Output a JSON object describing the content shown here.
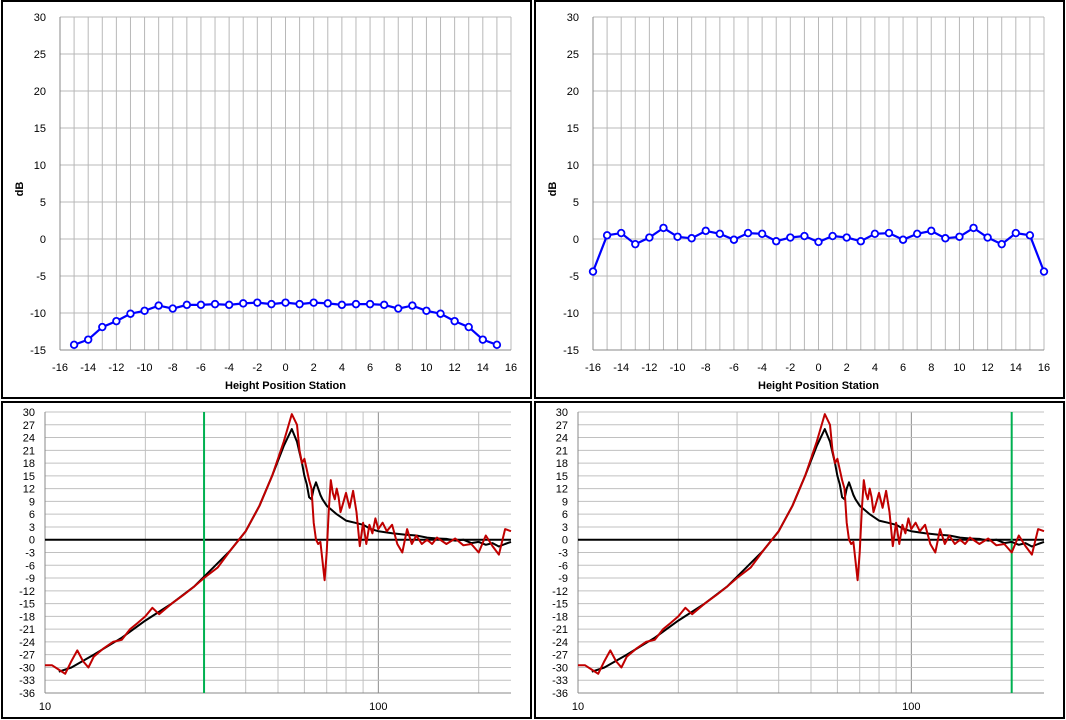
{
  "chart_data": [
    {
      "type": "line",
      "xlabel": "Height Position Station",
      "ylabel": "dB",
      "xlim": [
        -16,
        16
      ],
      "ylim": [
        -15,
        30
      ],
      "xticks": [
        -16,
        -14,
        -12,
        -10,
        -8,
        -6,
        -4,
        -2,
        0,
        2,
        4,
        6,
        8,
        10,
        12,
        14,
        16
      ],
      "yticks": [
        -15,
        -10,
        -5,
        0,
        5,
        10,
        15,
        20,
        25,
        30
      ],
      "grid": true,
      "series": [
        {
          "color": "#0000ff",
          "marker": "circle",
          "x": [
            -15,
            -14,
            -13,
            -12,
            -11,
            -10,
            -9,
            -8,
            -7,
            -6,
            -5,
            -4,
            -3,
            -2,
            -1,
            0,
            1,
            2,
            3,
            4,
            5,
            6,
            7,
            8,
            9,
            10,
            11,
            12,
            13,
            14,
            15
          ],
          "y": [
            -14.3,
            -13.6,
            -11.9,
            -11.1,
            -10.1,
            -9.7,
            -9.0,
            -9.4,
            -8.9,
            -8.9,
            -8.8,
            -8.9,
            -8.7,
            -8.6,
            -8.8,
            -8.6,
            -8.8,
            -8.6,
            -8.7,
            -8.9,
            -8.8,
            -8.8,
            -8.9,
            -9.4,
            -9.0,
            -9.7,
            -10.1,
            -11.1,
            -11.9,
            -13.6,
            -14.3
          ]
        }
      ]
    },
    {
      "type": "line",
      "xlabel": "Height Position Station",
      "ylabel": "dB",
      "xlim": [
        -16,
        16
      ],
      "ylim": [
        -15,
        30
      ],
      "xticks": [
        -16,
        -14,
        -12,
        -10,
        -8,
        -6,
        -4,
        -2,
        0,
        2,
        4,
        6,
        8,
        10,
        12,
        14,
        16
      ],
      "yticks": [
        -15,
        -10,
        -5,
        0,
        5,
        10,
        15,
        20,
        25,
        30
      ],
      "grid": true,
      "series": [
        {
          "color": "#0000ff",
          "marker": "circle",
          "x": [
            -16,
            -15,
            -14,
            -13,
            -12,
            -11,
            -10,
            -9,
            -8,
            -7,
            -6,
            -5,
            -4,
            -3,
            -2,
            -1,
            0,
            1,
            2,
            3,
            4,
            5,
            6,
            7,
            8,
            9,
            10,
            11,
            12,
            13,
            14,
            15,
            16
          ],
          "y": [
            -4.4,
            0.5,
            0.8,
            -0.7,
            0.2,
            1.5,
            0.3,
            0.1,
            1.1,
            0.7,
            -0.1,
            0.8,
            0.7,
            -0.3,
            0.2,
            0.4,
            -0.4,
            0.4,
            0.2,
            -0.3,
            0.7,
            0.8,
            -0.1,
            0.7,
            1.1,
            0.1,
            0.3,
            1.5,
            0.2,
            -0.7,
            0.8,
            0.5,
            -4.4
          ]
        }
      ]
    },
    {
      "type": "line",
      "xscale": "log",
      "xlim": [
        10,
        250
      ],
      "ylim": [
        -36,
        30
      ],
      "xtick_labels": [
        "10",
        "100"
      ],
      "yticks": [
        -36,
        -33,
        -30,
        -27,
        -24,
        -21,
        -18,
        -15,
        -12,
        -9,
        -6,
        -3,
        0,
        3,
        6,
        9,
        12,
        15,
        18,
        21,
        24,
        27,
        30
      ],
      "grid": true,
      "marker_line": {
        "x": 30,
        "color": "#00b050"
      },
      "series": [
        {
          "color": "#000000",
          "x": [
            11,
            12,
            14,
            17,
            20,
            24,
            28,
            32,
            36,
            40,
            44,
            48,
            52,
            55,
            57,
            59,
            60,
            61,
            62,
            63,
            64,
            65,
            66,
            67,
            68,
            70,
            75,
            80,
            85,
            90,
            95,
            100,
            110,
            120,
            130,
            140,
            150,
            160,
            170,
            180,
            190,
            200,
            210,
            220,
            230,
            240,
            250
          ],
          "y": [
            -31,
            -30,
            -27,
            -23,
            -19,
            -15,
            -11,
            -6.5,
            -2.5,
            2,
            8,
            15,
            22,
            26,
            23,
            18,
            15,
            13,
            10,
            9.5,
            12,
            13.5,
            12,
            10.5,
            9.5,
            8,
            6,
            4.5,
            4,
            3.5,
            2.5,
            2,
            1.5,
            1.2,
            1,
            0.5,
            0.3,
            0.2,
            -0.2,
            0,
            -0.8,
            -0.5,
            -1.2,
            -0.8,
            -1.6,
            -1.0,
            -0.5
          ]
        },
        {
          "color": "#c00000",
          "x": [
            10,
            10.5,
            11,
            11.5,
            12,
            12.5,
            13,
            13.5,
            14,
            15,
            16,
            17,
            18,
            19,
            20,
            21,
            22,
            24,
            26,
            28,
            30,
            33,
            36,
            40,
            44,
            48,
            52,
            55,
            57,
            58,
            59,
            60,
            62,
            63,
            64,
            65,
            66,
            67,
            68,
            69,
            70,
            71,
            72,
            73,
            74,
            75,
            76,
            77,
            78,
            79,
            80,
            82,
            84,
            86,
            88,
            90,
            92,
            94,
            96,
            98,
            100,
            103,
            106,
            110,
            114,
            118,
            122,
            126,
            130,
            135,
            140,
            145,
            150,
            160,
            170,
            180,
            190,
            200,
            210,
            220,
            230,
            240,
            250
          ],
          "y": [
            -29.5,
            -29.5,
            -30.5,
            -31.5,
            -28.5,
            -26,
            -28.5,
            -30,
            -27.5,
            -25.5,
            -24,
            -23.5,
            -21,
            -19.5,
            -18,
            -16,
            -17.5,
            -15,
            -13,
            -11,
            -9,
            -6.5,
            -2.5,
            2,
            8,
            15,
            23,
            29.5,
            27,
            21,
            18,
            19,
            14,
            12,
            4,
            0,
            -1,
            -0.5,
            -5,
            -9.5,
            -3,
            7,
            14,
            11,
            9.5,
            12,
            10,
            6.5,
            8,
            9.5,
            11,
            7.5,
            11.5,
            6.5,
            -1.5,
            4,
            -1,
            3.5,
            1.5,
            5,
            2.5,
            4,
            2,
            3.5,
            -1,
            -3,
            2.5,
            -1,
            1,
            -1,
            0,
            -1,
            0.5,
            -1,
            0.3,
            -1.3,
            -1,
            -3,
            1,
            -1.5,
            -3.5,
            2.5,
            2
          ]
        }
      ]
    },
    {
      "type": "line",
      "xscale": "log",
      "xlim": [
        10,
        250
      ],
      "ylim": [
        -36,
        30
      ],
      "xtick_labels": [
        "10",
        "100"
      ],
      "yticks": [
        -36,
        -33,
        -30,
        -27,
        -24,
        -21,
        -18,
        -15,
        -12,
        -9,
        -6,
        -3,
        0,
        3,
        6,
        9,
        12,
        15,
        18,
        21,
        24,
        27,
        30
      ],
      "grid": true,
      "marker_line": {
        "x": 200,
        "color": "#00b050"
      },
      "series": [
        {
          "color": "#000000",
          "x": [
            11,
            12,
            14,
            17,
            20,
            24,
            28,
            32,
            36,
            40,
            44,
            48,
            52,
            55,
            57,
            59,
            60,
            61,
            62,
            63,
            64,
            65,
            66,
            67,
            68,
            70,
            75,
            80,
            85,
            90,
            95,
            100,
            110,
            120,
            130,
            140,
            150,
            160,
            170,
            180,
            190,
            200,
            210,
            220,
            230,
            240,
            250
          ],
          "y": [
            -31,
            -30,
            -27,
            -23,
            -19,
            -15,
            -11,
            -6.5,
            -2.5,
            2,
            8,
            15,
            22,
            26,
            23,
            18,
            15,
            13,
            10,
            9.5,
            12,
            13.5,
            12,
            10.5,
            9.5,
            8,
            6,
            4.5,
            4,
            3.5,
            2.5,
            2,
            1.5,
            1.2,
            1,
            0.5,
            0.3,
            0.2,
            -0.2,
            0,
            -0.8,
            -0.5,
            -1.2,
            -0.8,
            -1.6,
            -1.0,
            -0.5
          ]
        },
        {
          "color": "#c00000",
          "x": [
            10,
            10.5,
            11,
            11.5,
            12,
            12.5,
            13,
            13.5,
            14,
            15,
            16,
            17,
            18,
            19,
            20,
            21,
            22,
            24,
            26,
            28,
            30,
            33,
            36,
            40,
            44,
            48,
            52,
            55,
            57,
            58,
            59,
            60,
            62,
            63,
            64,
            65,
            66,
            67,
            68,
            69,
            70,
            71,
            72,
            73,
            74,
            75,
            76,
            77,
            78,
            79,
            80,
            82,
            84,
            86,
            88,
            90,
            92,
            94,
            96,
            98,
            100,
            103,
            106,
            110,
            114,
            118,
            122,
            126,
            130,
            135,
            140,
            145,
            150,
            160,
            170,
            180,
            190,
            200,
            210,
            220,
            230,
            240,
            250
          ],
          "y": [
            -29.5,
            -29.5,
            -30.5,
            -31.5,
            -28.5,
            -26,
            -28.5,
            -30,
            -27.5,
            -25.5,
            -24,
            -23.5,
            -21,
            -19.5,
            -18,
            -16,
            -17.5,
            -15,
            -13,
            -11,
            -9,
            -6.5,
            -2.5,
            2,
            8,
            15,
            23,
            29.5,
            27,
            21,
            18,
            19,
            14,
            12,
            4,
            0,
            -1,
            -0.5,
            -5,
            -9.5,
            -3,
            7,
            14,
            11,
            9.5,
            12,
            10,
            6.5,
            8,
            9.5,
            11,
            7.5,
            11.5,
            6.5,
            -1.5,
            4,
            -1,
            3.5,
            1.5,
            5,
            2.5,
            4,
            2,
            3.5,
            -1,
            -3,
            2.5,
            -1,
            1,
            -1,
            0,
            -1,
            0.5,
            -1,
            0.3,
            -1.3,
            -1,
            -3,
            1,
            -1.5,
            -3.5,
            2.5,
            2
          ]
        }
      ]
    }
  ]
}
